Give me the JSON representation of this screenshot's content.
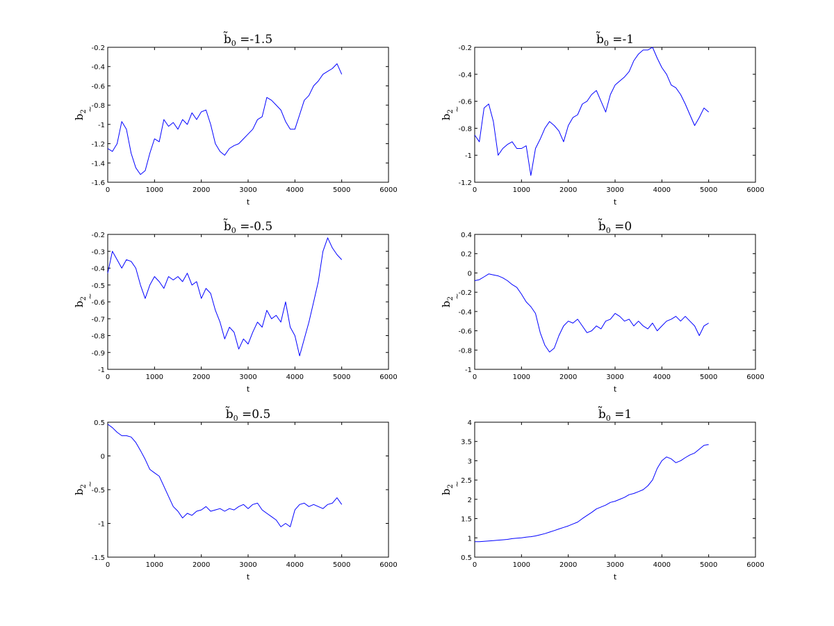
{
  "figure": {
    "background": "#ffffff",
    "line_color": "#0000ff",
    "axis_color": "#000000"
  },
  "chart_data": [
    {
      "type": "line",
      "title": "b̃0 =-1.5",
      "title_base": "b̃",
      "title_sub": "0",
      "title_suffix": " =-1.5",
      "xlabel": "t",
      "ylabel": "b̃2",
      "ylabel_base": "b",
      "ylabel_sub": "2",
      "ylabel_mark": "~",
      "xlim": [
        0,
        6000
      ],
      "ylim": [
        -1.6,
        -0.2
      ],
      "xticks": [
        0,
        1000,
        2000,
        3000,
        4000,
        5000,
        6000
      ],
      "yticks": [
        -1.6,
        -1.4,
        -1.2,
        -1,
        -0.8,
        -0.6,
        -0.4,
        -0.2
      ],
      "series": [
        {
          "color": "#0000ff",
          "x": [
            0,
            100,
            200,
            300,
            400,
            500,
            600,
            700,
            800,
            900,
            1000,
            1100,
            1200,
            1300,
            1400,
            1500,
            1600,
            1700,
            1800,
            1900,
            2000,
            2100,
            2200,
            2300,
            2400,
            2500,
            2600,
            2700,
            2800,
            2900,
            3000,
            3100,
            3200,
            3300,
            3400,
            3500,
            3600,
            3700,
            3800,
            3900,
            4000,
            4100,
            4200,
            4300,
            4400,
            4500,
            4600,
            4700,
            4800,
            4900,
            5000
          ],
          "y": [
            -1.25,
            -1.28,
            -1.2,
            -0.97,
            -1.05,
            -1.3,
            -1.45,
            -1.52,
            -1.48,
            -1.3,
            -1.15,
            -1.18,
            -0.95,
            -1.02,
            -0.98,
            -1.05,
            -0.95,
            -1.0,
            -0.88,
            -0.95,
            -0.87,
            -0.85,
            -1.0,
            -1.2,
            -1.28,
            -1.32,
            -1.25,
            -1.22,
            -1.2,
            -1.15,
            -1.1,
            -1.05,
            -0.95,
            -0.92,
            -0.72,
            -0.75,
            -0.8,
            -0.85,
            -0.97,
            -1.05,
            -1.05,
            -0.9,
            -0.75,
            -0.7,
            -0.6,
            -0.55,
            -0.48,
            -0.45,
            -0.42,
            -0.37,
            -0.48
          ]
        }
      ]
    },
    {
      "type": "line",
      "title": "b̃0 =-1",
      "title_base": "b̃",
      "title_sub": "0",
      "title_suffix": " =-1",
      "xlabel": "t",
      "ylabel": "b̃2",
      "ylabel_base": "b",
      "ylabel_sub": "2",
      "ylabel_mark": "~",
      "xlim": [
        0,
        6000
      ],
      "ylim": [
        -1.2,
        -0.2
      ],
      "xticks": [
        0,
        1000,
        2000,
        3000,
        4000,
        5000,
        6000
      ],
      "yticks": [
        -1.2,
        -1,
        -0.8,
        -0.6,
        -0.4,
        -0.2
      ],
      "series": [
        {
          "color": "#0000ff",
          "x": [
            0,
            100,
            200,
            300,
            400,
            500,
            600,
            700,
            800,
            900,
            1000,
            1100,
            1200,
            1300,
            1400,
            1500,
            1600,
            1700,
            1800,
            1900,
            2000,
            2100,
            2200,
            2300,
            2400,
            2500,
            2600,
            2700,
            2800,
            2900,
            3000,
            3100,
            3200,
            3300,
            3400,
            3500,
            3600,
            3700,
            3800,
            3900,
            4000,
            4100,
            4200,
            4300,
            4400,
            4500,
            4600,
            4700,
            4800,
            4900,
            5000
          ],
          "y": [
            -0.85,
            -0.9,
            -0.65,
            -0.62,
            -0.75,
            -1.0,
            -0.95,
            -0.92,
            -0.9,
            -0.95,
            -0.95,
            -0.93,
            -1.15,
            -0.95,
            -0.88,
            -0.8,
            -0.75,
            -0.78,
            -0.82,
            -0.9,
            -0.78,
            -0.72,
            -0.7,
            -0.62,
            -0.6,
            -0.55,
            -0.52,
            -0.6,
            -0.68,
            -0.55,
            -0.48,
            -0.45,
            -0.42,
            -0.38,
            -0.3,
            -0.25,
            -0.22,
            -0.22,
            -0.2,
            -0.28,
            -0.35,
            -0.4,
            -0.48,
            -0.5,
            -0.55,
            -0.62,
            -0.7,
            -0.78,
            -0.72,
            -0.65,
            -0.68
          ]
        }
      ]
    },
    {
      "type": "line",
      "title": "b̃0 =-0.5",
      "title_base": "b̃",
      "title_sub": "0",
      "title_suffix": " =-0.5",
      "xlabel": "t",
      "ylabel": "b̃2",
      "ylabel_base": "b",
      "ylabel_sub": "2",
      "ylabel_mark": "~",
      "xlim": [
        0,
        6000
      ],
      "ylim": [
        -1,
        -0.2
      ],
      "xticks": [
        0,
        1000,
        2000,
        3000,
        4000,
        5000,
        6000
      ],
      "yticks": [
        -1,
        -0.9,
        -0.8,
        -0.7,
        -0.6,
        -0.5,
        -0.4,
        -0.3,
        -0.2
      ],
      "series": [
        {
          "color": "#0000ff",
          "x": [
            0,
            100,
            200,
            300,
            400,
            500,
            600,
            700,
            800,
            900,
            1000,
            1100,
            1200,
            1300,
            1400,
            1500,
            1600,
            1700,
            1800,
            1900,
            2000,
            2100,
            2200,
            2300,
            2400,
            2500,
            2600,
            2700,
            2800,
            2900,
            3000,
            3100,
            3200,
            3300,
            3400,
            3500,
            3600,
            3700,
            3800,
            3900,
            4000,
            4100,
            4200,
            4300,
            4400,
            4500,
            4600,
            4700,
            4800,
            4900,
            5000
          ],
          "y": [
            -0.43,
            -0.3,
            -0.35,
            -0.4,
            -0.35,
            -0.36,
            -0.4,
            -0.5,
            -0.58,
            -0.5,
            -0.45,
            -0.48,
            -0.52,
            -0.45,
            -0.47,
            -0.45,
            -0.48,
            -0.43,
            -0.5,
            -0.48,
            -0.58,
            -0.52,
            -0.55,
            -0.65,
            -0.72,
            -0.82,
            -0.75,
            -0.78,
            -0.88,
            -0.82,
            -0.85,
            -0.78,
            -0.72,
            -0.75,
            -0.65,
            -0.7,
            -0.68,
            -0.72,
            -0.6,
            -0.75,
            -0.8,
            -0.92,
            -0.82,
            -0.72,
            -0.6,
            -0.48,
            -0.3,
            -0.22,
            -0.28,
            -0.32,
            -0.35
          ]
        }
      ]
    },
    {
      "type": "line",
      "title": "b̃0 =0",
      "title_base": "b̃",
      "title_sub": "0",
      "title_suffix": " =0",
      "xlabel": "t",
      "ylabel": "b̃2",
      "ylabel_base": "b",
      "ylabel_sub": "2",
      "ylabel_mark": "~",
      "xlim": [
        0,
        6000
      ],
      "ylim": [
        -1,
        0.4
      ],
      "xticks": [
        0,
        1000,
        2000,
        3000,
        4000,
        5000,
        6000
      ],
      "yticks": [
        -1,
        -0.8,
        -0.6,
        -0.4,
        -0.2,
        0,
        0.2,
        0.4
      ],
      "series": [
        {
          "color": "#0000ff",
          "x": [
            0,
            100,
            200,
            300,
            400,
            500,
            600,
            700,
            800,
            900,
            1000,
            1100,
            1200,
            1300,
            1400,
            1500,
            1600,
            1700,
            1800,
            1900,
            2000,
            2100,
            2200,
            2300,
            2400,
            2500,
            2600,
            2700,
            2800,
            2900,
            3000,
            3100,
            3200,
            3300,
            3400,
            3500,
            3600,
            3700,
            3800,
            3900,
            4000,
            4100,
            4200,
            4300,
            4400,
            4500,
            4600,
            4700,
            4800,
            4900,
            5000
          ],
          "y": [
            -0.08,
            -0.07,
            -0.04,
            -0.01,
            -0.02,
            -0.03,
            -0.05,
            -0.08,
            -0.12,
            -0.15,
            -0.22,
            -0.3,
            -0.35,
            -0.42,
            -0.62,
            -0.75,
            -0.82,
            -0.78,
            -0.65,
            -0.55,
            -0.5,
            -0.52,
            -0.48,
            -0.55,
            -0.62,
            -0.6,
            -0.55,
            -0.58,
            -0.5,
            -0.48,
            -0.42,
            -0.45,
            -0.5,
            -0.48,
            -0.55,
            -0.5,
            -0.55,
            -0.58,
            -0.52,
            -0.6,
            -0.55,
            -0.5,
            -0.48,
            -0.45,
            -0.5,
            -0.45,
            -0.5,
            -0.55,
            -0.65,
            -0.55,
            -0.52
          ]
        }
      ]
    },
    {
      "type": "line",
      "title": "b̃0 =0.5",
      "title_base": "b̃",
      "title_sub": "0",
      "title_suffix": " =0.5",
      "xlabel": "t",
      "ylabel": "b̃2",
      "ylabel_base": "b",
      "ylabel_sub": "2",
      "ylabel_mark": "~",
      "xlim": [
        0,
        6000
      ],
      "ylim": [
        -1.5,
        0.5
      ],
      "xticks": [
        0,
        1000,
        2000,
        3000,
        4000,
        5000,
        6000
      ],
      "yticks": [
        -1.5,
        -1,
        -0.5,
        0,
        0.5
      ],
      "series": [
        {
          "color": "#0000ff",
          "x": [
            0,
            100,
            200,
            300,
            400,
            500,
            600,
            700,
            800,
            900,
            1000,
            1100,
            1200,
            1300,
            1400,
            1500,
            1600,
            1700,
            1800,
            1900,
            2000,
            2100,
            2200,
            2300,
            2400,
            2500,
            2600,
            2700,
            2800,
            2900,
            3000,
            3100,
            3200,
            3300,
            3400,
            3500,
            3600,
            3700,
            3800,
            3900,
            4000,
            4100,
            4200,
            4300,
            4400,
            4500,
            4600,
            4700,
            4800,
            4900,
            5000
          ],
          "y": [
            0.47,
            0.42,
            0.35,
            0.3,
            0.3,
            0.28,
            0.2,
            0.08,
            -0.05,
            -0.2,
            -0.25,
            -0.3,
            -0.45,
            -0.6,
            -0.75,
            -0.82,
            -0.92,
            -0.85,
            -0.88,
            -0.82,
            -0.8,
            -0.75,
            -0.82,
            -0.8,
            -0.78,
            -0.82,
            -0.78,
            -0.8,
            -0.75,
            -0.72,
            -0.78,
            -0.72,
            -0.7,
            -0.8,
            -0.85,
            -0.9,
            -0.95,
            -1.05,
            -1.0,
            -1.05,
            -0.8,
            -0.72,
            -0.7,
            -0.75,
            -0.72,
            -0.75,
            -0.78,
            -0.72,
            -0.7,
            -0.62,
            -0.72
          ]
        }
      ]
    },
    {
      "type": "line",
      "title": "b̃0 =1",
      "title_base": "b̃",
      "title_sub": "0",
      "title_suffix": " =1",
      "xlabel": "t",
      "ylabel": "b̃2",
      "ylabel_base": "b",
      "ylabel_sub": "2",
      "ylabel_mark": "~",
      "xlim": [
        0,
        6000
      ],
      "ylim": [
        0.5,
        4
      ],
      "xticks": [
        0,
        1000,
        2000,
        3000,
        4000,
        5000,
        6000
      ],
      "yticks": [
        0.5,
        1,
        1.5,
        2,
        2.5,
        3,
        3.5,
        4
      ],
      "series": [
        {
          "color": "#0000ff",
          "x": [
            0,
            100,
            200,
            300,
            400,
            500,
            600,
            700,
            800,
            900,
            1000,
            1100,
            1200,
            1300,
            1400,
            1500,
            1600,
            1700,
            1800,
            1900,
            2000,
            2100,
            2200,
            2300,
            2400,
            2500,
            2600,
            2700,
            2800,
            2900,
            3000,
            3100,
            3200,
            3300,
            3400,
            3500,
            3600,
            3700,
            3800,
            3900,
            4000,
            4100,
            4200,
            4300,
            4400,
            4500,
            4600,
            4700,
            4800,
            4900,
            5000
          ],
          "y": [
            0.9,
            0.9,
            0.91,
            0.92,
            0.93,
            0.94,
            0.95,
            0.96,
            0.98,
            0.99,
            1.0,
            1.02,
            1.03,
            1.05,
            1.08,
            1.11,
            1.15,
            1.19,
            1.23,
            1.27,
            1.31,
            1.36,
            1.41,
            1.5,
            1.58,
            1.66,
            1.75,
            1.8,
            1.85,
            1.92,
            1.95,
            2.0,
            2.05,
            2.12,
            2.15,
            2.2,
            2.25,
            2.35,
            2.5,
            2.8,
            3.0,
            3.1,
            3.05,
            2.95,
            3.0,
            3.08,
            3.15,
            3.2,
            3.3,
            3.4,
            3.42
          ]
        }
      ]
    }
  ]
}
